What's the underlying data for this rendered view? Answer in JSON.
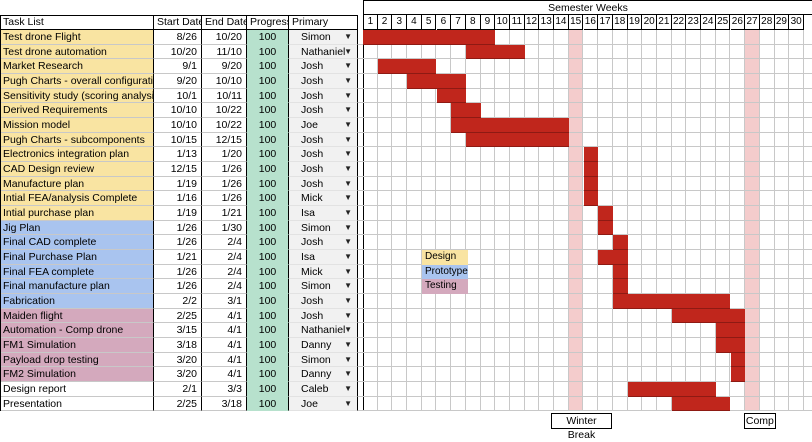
{
  "header": {
    "task_list": "Task List",
    "start_date": "Start Date",
    "end_date": "End Date",
    "progress": "Progress",
    "primary": "Primary",
    "semester_weeks": "Semester Weeks"
  },
  "weeks": [
    "1",
    "2",
    "3",
    "4",
    "5",
    "6",
    "7",
    "8",
    "9",
    "10",
    "11",
    "12",
    "13",
    "14",
    "15",
    "16",
    "17",
    "18",
    "19",
    "20",
    "21",
    "22",
    "23",
    "24",
    "25",
    "26",
    "27",
    "28",
    "29",
    "30"
  ],
  "break_weeks": [
    15,
    27
  ],
  "colors": {
    "design": "#f9e4a2",
    "prototype": "#a9c4ef",
    "testing": "#d4a9bd",
    "progress": "#b7e1cd",
    "primary": "#f1f1f1",
    "bar": "#c0261c",
    "break": "#f4cccc",
    "grid": "#c8c8c8"
  },
  "tasks": [
    {
      "name": "Test drone Flight",
      "start": "8/26",
      "end": "10/20",
      "progress": "100",
      "primary": "Simon",
      "category": "design",
      "bar": [
        1,
        9
      ]
    },
    {
      "name": "Test drone automation",
      "start": "10/20",
      "end": "11/10",
      "progress": "100",
      "primary": "Nathaniel",
      "category": "design",
      "bar": [
        8,
        11
      ]
    },
    {
      "name": "Market Research",
      "start": "9/1",
      "end": "9/20",
      "progress": "100",
      "primary": "Josh",
      "category": "design",
      "bar": [
        2,
        5
      ]
    },
    {
      "name": "Pugh Charts - overall configuration",
      "start": "9/20",
      "end": "10/10",
      "progress": "100",
      "primary": "Josh",
      "category": "design",
      "bar": [
        4,
        7
      ]
    },
    {
      "name": "Sensitivity study (scoring analysis)",
      "start": "10/1",
      "end": "10/11",
      "progress": "100",
      "primary": "Josh",
      "category": "design",
      "bar": [
        6,
        7
      ]
    },
    {
      "name": "Derived Requirements",
      "start": "10/10",
      "end": "10/22",
      "progress": "100",
      "primary": "Josh",
      "category": "design",
      "bar": [
        7,
        8
      ]
    },
    {
      "name": "Mission model",
      "start": "10/10",
      "end": "10/22",
      "progress": "100",
      "primary": "Joe",
      "category": "design",
      "bar": [
        7,
        14
      ]
    },
    {
      "name": "Pugh Charts - subcomponents",
      "start": "10/15",
      "end": "12/15",
      "progress": "100",
      "primary": "Josh",
      "category": "design",
      "bar": [
        8,
        14
      ]
    },
    {
      "name": "Electronics integration plan",
      "start": "1/13",
      "end": "1/20",
      "progress": "100",
      "primary": "Josh",
      "category": "design",
      "bar": [
        16,
        16
      ]
    },
    {
      "name": "CAD Design review",
      "start": "12/15",
      "end": "1/26",
      "progress": "100",
      "primary": "Josh",
      "category": "design",
      "bar": [
        16,
        16
      ]
    },
    {
      "name": "Manufacture plan",
      "start": "1/19",
      "end": "1/26",
      "progress": "100",
      "primary": "Josh",
      "category": "design",
      "bar": [
        16,
        16
      ]
    },
    {
      "name": "Intial FEA/analysis Complete",
      "start": "1/16",
      "end": "1/26",
      "progress": "100",
      "primary": "Mick",
      "category": "design",
      "bar": [
        16,
        16
      ]
    },
    {
      "name": "Intial purchase plan",
      "start": "1/19",
      "end": "1/21",
      "progress": "100",
      "primary": "Isa",
      "category": "design",
      "bar": [
        17,
        17
      ]
    },
    {
      "name": "Jig Plan",
      "start": "1/26",
      "end": "1/30",
      "progress": "100",
      "primary": "Simon",
      "category": "prototype",
      "bar": [
        17,
        17
      ]
    },
    {
      "name": "Final CAD complete",
      "start": "1/26",
      "end": "2/4",
      "progress": "100",
      "primary": "Josh",
      "category": "prototype",
      "bar": [
        18,
        18
      ]
    },
    {
      "name": "Final Purchase Plan",
      "start": "1/21",
      "end": "2/4",
      "progress": "100",
      "primary": "Isa",
      "category": "prototype",
      "bar": [
        17,
        18
      ]
    },
    {
      "name": "Final FEA complete",
      "start": "1/26",
      "end": "2/4",
      "progress": "100",
      "primary": "Mick",
      "category": "prototype",
      "bar": [
        18,
        18
      ]
    },
    {
      "name": "Final manufacture plan",
      "start": "1/26",
      "end": "2/4",
      "progress": "100",
      "primary": "Simon",
      "category": "prototype",
      "bar": [
        18,
        18
      ]
    },
    {
      "name": "Fabrication",
      "start": "2/2",
      "end": "3/1",
      "progress": "100",
      "primary": "Josh",
      "category": "prototype",
      "bar": [
        18,
        25
      ]
    },
    {
      "name": "Maiden flight",
      "start": "2/25",
      "end": "4/1",
      "progress": "100",
      "primary": "Josh",
      "category": "testing",
      "bar": [
        22,
        26
      ]
    },
    {
      "name": "Automation - Comp drone",
      "start": "3/15",
      "end": "4/1",
      "progress": "100",
      "primary": "Nathaniel",
      "category": "testing",
      "bar": [
        25,
        26
      ]
    },
    {
      "name": "FM1 Simulation",
      "start": "3/18",
      "end": "4/1",
      "progress": "100",
      "primary": "Danny",
      "category": "testing",
      "bar": [
        25,
        26
      ]
    },
    {
      "name": "Payload drop testing",
      "start": "3/20",
      "end": "4/1",
      "progress": "100",
      "primary": "Simon",
      "category": "testing",
      "bar": [
        26,
        26
      ]
    },
    {
      "name": "FM2 Simulation",
      "start": "3/20",
      "end": "4/1",
      "progress": "100",
      "primary": "Danny",
      "category": "testing",
      "bar": [
        26,
        26
      ]
    },
    {
      "name": "Design report",
      "start": "2/1",
      "end": "3/3",
      "progress": "100",
      "primary": "Caleb",
      "category": "none",
      "bar": [
        19,
        24
      ]
    },
    {
      "name": "Presentation",
      "start": "2/25",
      "end": "3/18",
      "progress": "100",
      "primary": "Joe",
      "category": "none",
      "bar": [
        22,
        25
      ]
    }
  ],
  "legend": [
    {
      "label": "Design",
      "category": "design"
    },
    {
      "label": "Prototype",
      "category": "prototype"
    },
    {
      "label": "Testing",
      "category": "testing"
    }
  ],
  "footer": {
    "winter_break": "Winter Break",
    "comp": "Comp"
  },
  "icons": {
    "dropdown": "caret-down-icon"
  }
}
